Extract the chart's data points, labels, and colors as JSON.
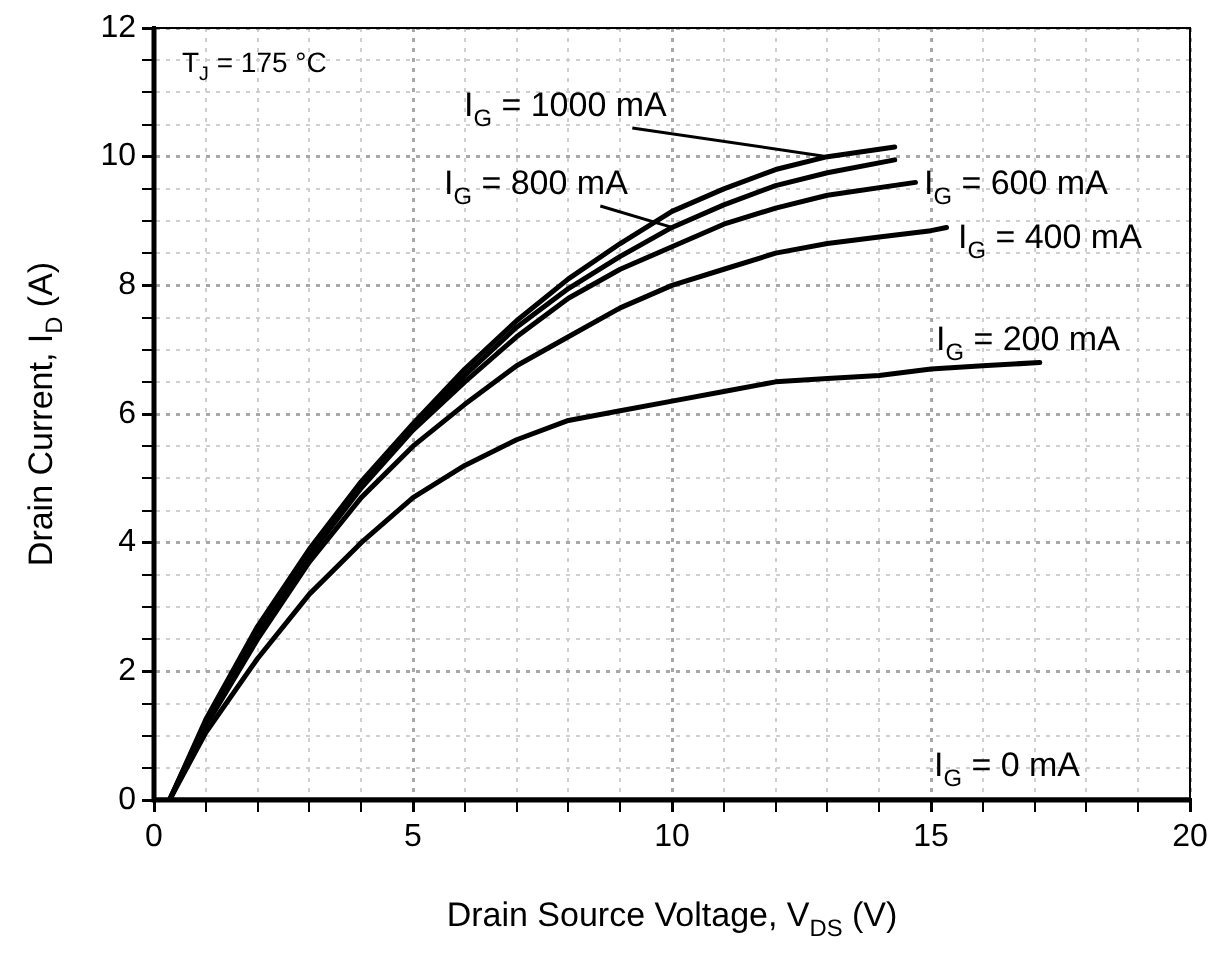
{
  "chart_data": {
    "type": "line",
    "xlabel": "Drain Source Voltage, V$_{DS}$ (V)",
    "ylabel": "Drain Current, I$_{D}$ (A)",
    "xlim": [
      0,
      20
    ],
    "ylim": [
      0,
      12
    ],
    "xticks": [
      0,
      {
        "value": 1,
        "label": null
      },
      {
        "value": 2,
        "label": null
      },
      {
        "value": 3,
        "label": null
      },
      {
        "value": 4,
        "label": null
      },
      5,
      {
        "value": 6,
        "label": null
      },
      {
        "value": 7,
        "label": null
      },
      {
        "value": 8,
        "label": null
      },
      {
        "value": 9,
        "label": null
      },
      10,
      {
        "value": 11,
        "label": null
      },
      {
        "value": 12,
        "label": null
      },
      {
        "value": 13,
        "label": null
      },
      {
        "value": 14,
        "label": null
      },
      15,
      {
        "value": 16,
        "label": null
      },
      {
        "value": 17,
        "label": null
      },
      {
        "value": 18,
        "label": null
      },
      {
        "value": 19,
        "label": null
      },
      20
    ],
    "yticks": [
      0,
      {
        "value": 0.5,
        "label": null
      },
      {
        "value": 1,
        "label": null
      },
      {
        "value": 1.5,
        "label": null
      },
      2,
      {
        "value": 2.5,
        "label": null
      },
      {
        "value": 3,
        "label": null
      },
      {
        "value": 3.5,
        "label": null
      },
      4,
      {
        "value": 4.5,
        "label": null
      },
      {
        "value": 5,
        "label": null
      },
      {
        "value": 5.5,
        "label": null
      },
      6,
      {
        "value": 6.5,
        "label": null
      },
      {
        "value": 7,
        "label": null
      },
      {
        "value": 7.5,
        "label": null
      },
      8,
      {
        "value": 8.5,
        "label": null
      },
      {
        "value": 9,
        "label": null
      },
      {
        "value": 9.5,
        "label": null
      },
      10,
      {
        "value": 10.5,
        "label": null
      },
      {
        "value": 11,
        "label": null
      },
      {
        "value": 11.5,
        "label": null
      },
      12
    ],
    "grid": true,
    "legend": false,
    "marker": "none",
    "line_style": "solid",
    "annotations": [
      "T$_{J}$ = 175 °C"
    ],
    "series": [
      {
        "name": "I$_{G}$ = 1000 mA",
        "color": "#000000",
        "x": [
          0.3,
          1,
          2,
          3,
          4,
          5,
          6,
          7,
          8,
          9,
          10,
          11,
          12,
          13,
          14.3
        ],
        "values": [
          0,
          1.25,
          2.7,
          3.9,
          4.95,
          5.85,
          6.7,
          7.45,
          8.1,
          8.65,
          9.15,
          9.5,
          9.8,
          10.0,
          10.15
        ]
      },
      {
        "name": "I$_{G}$ = 800 mA",
        "color": "#000000",
        "x": [
          0.3,
          1,
          2,
          3,
          4,
          5,
          6,
          7,
          8,
          9,
          10,
          11,
          12,
          13,
          14.3
        ],
        "values": [
          0,
          1.2,
          2.65,
          3.85,
          4.9,
          5.8,
          6.6,
          7.35,
          7.95,
          8.45,
          8.9,
          9.25,
          9.55,
          9.75,
          9.95
        ]
      },
      {
        "name": "I$_{G}$ = 600 mA",
        "color": "#000000",
        "x": [
          0.3,
          1,
          2,
          3,
          4,
          5,
          6,
          7,
          8,
          9,
          10,
          11,
          12,
          13,
          14.7
        ],
        "values": [
          0,
          1.2,
          2.6,
          3.8,
          4.85,
          5.75,
          6.5,
          7.2,
          7.8,
          8.25,
          8.6,
          8.95,
          9.2,
          9.4,
          9.6
        ]
      },
      {
        "name": "I$_{G}$ = 400 mA",
        "color": "#000000",
        "x": [
          0.3,
          1,
          2,
          3,
          4,
          5,
          6,
          7,
          8,
          9,
          10,
          11,
          12,
          13,
          14,
          15,
          15.3
        ],
        "values": [
          0,
          1.15,
          2.5,
          3.7,
          4.7,
          5.5,
          6.15,
          6.75,
          7.2,
          7.65,
          8.0,
          8.25,
          8.5,
          8.65,
          8.75,
          8.85,
          8.9
        ]
      },
      {
        "name": "I$_{G}$ = 200 mA",
        "color": "#000000",
        "x": [
          0.3,
          1,
          2,
          3,
          4,
          5,
          6,
          7,
          8,
          9,
          10,
          11,
          12,
          13,
          14,
          15,
          16,
          17.1
        ],
        "values": [
          0,
          1.05,
          2.2,
          3.2,
          4.0,
          4.7,
          5.2,
          5.6,
          5.9,
          6.05,
          6.2,
          6.35,
          6.5,
          6.55,
          6.6,
          6.7,
          6.75,
          6.8
        ]
      },
      {
        "name": "I$_{G}$ = 0 mA",
        "color": "#000000",
        "x": [
          0,
          5,
          10,
          15,
          20
        ],
        "values": [
          0,
          0,
          0,
          0,
          0
        ]
      }
    ]
  }
}
